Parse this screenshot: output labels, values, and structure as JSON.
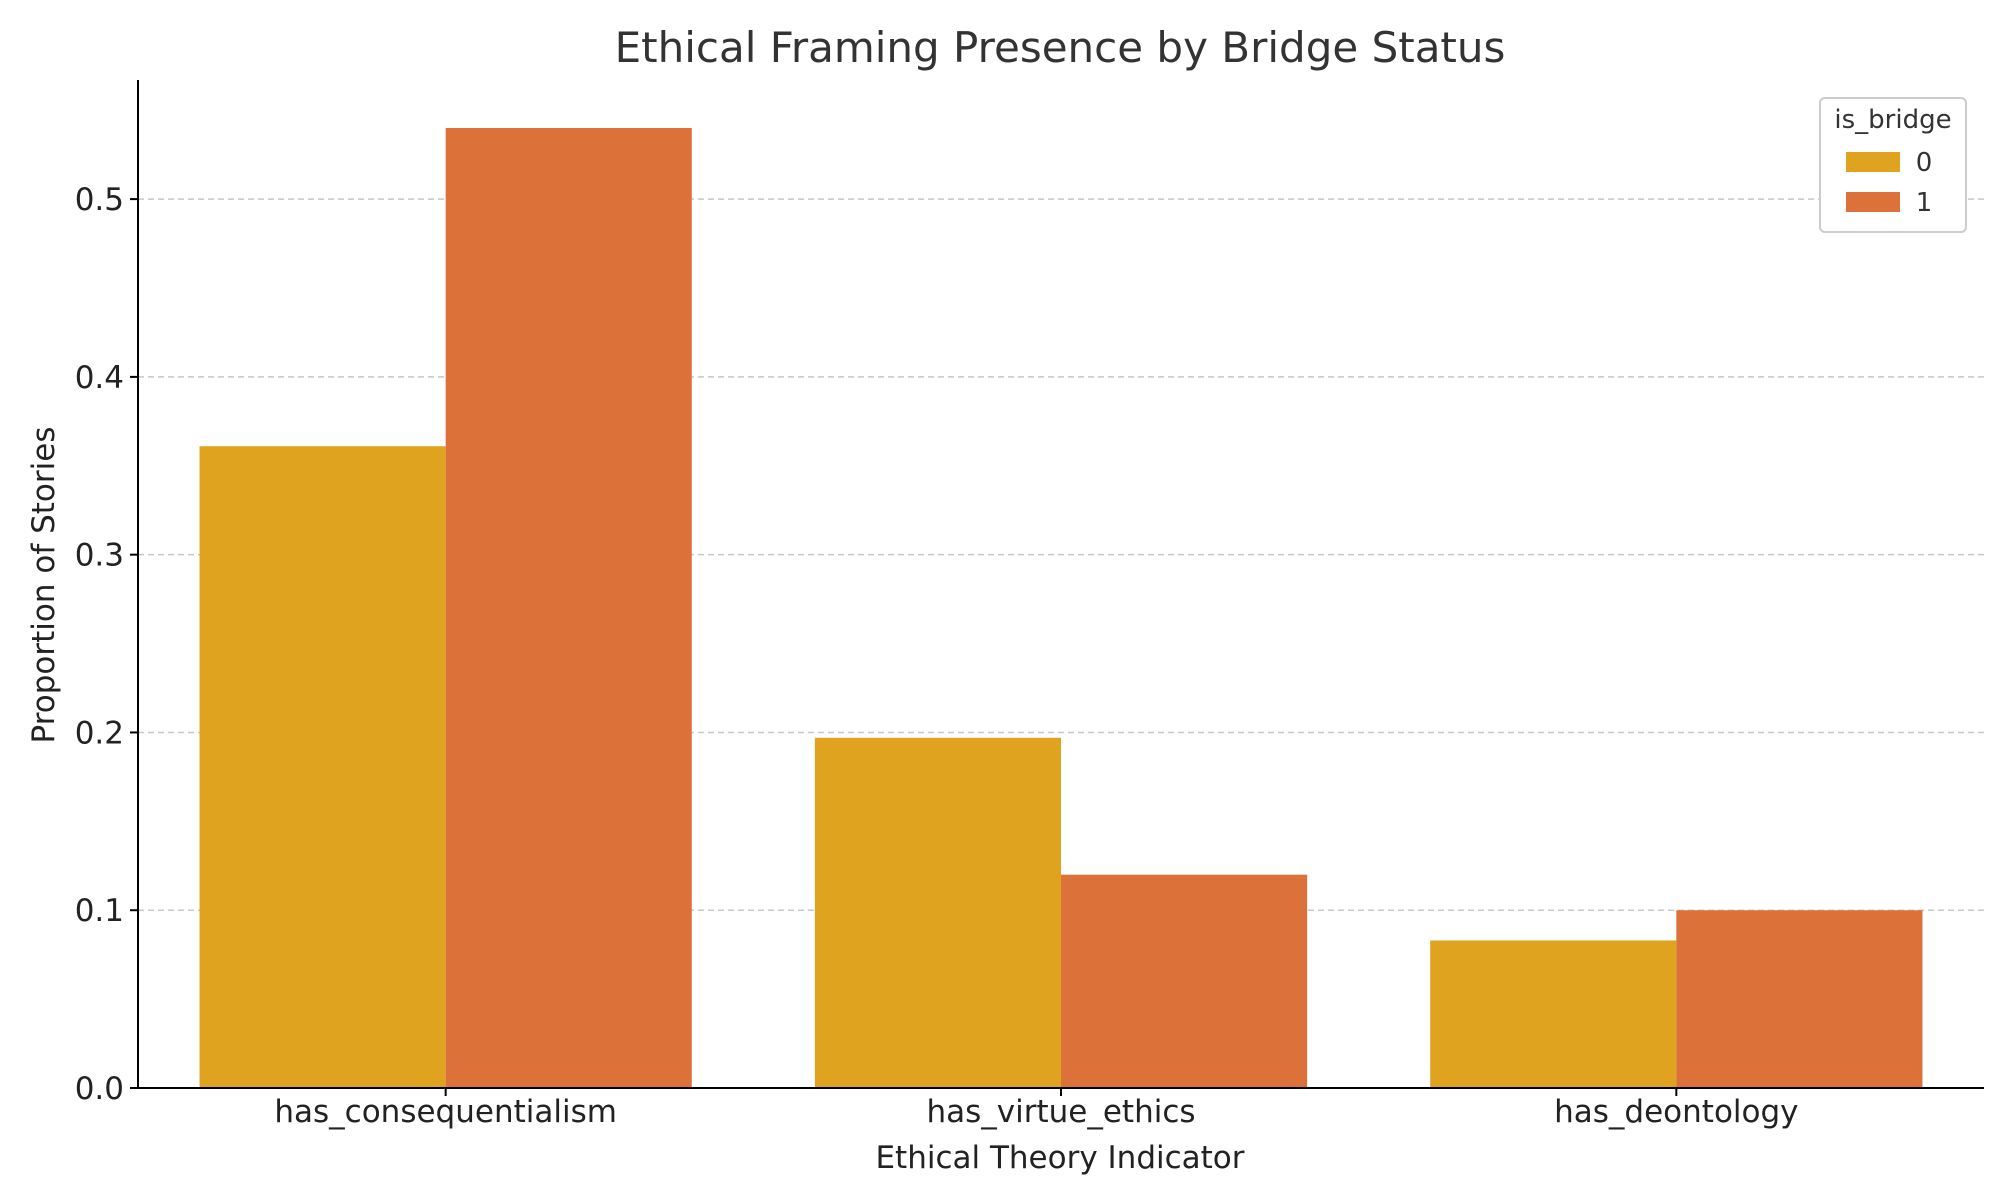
{
  "chart_data": {
    "type": "bar",
    "title": "Ethical Framing Presence by Bridge Status",
    "xlabel": "Ethical Theory Indicator",
    "ylabel": "Proportion of Stories",
    "categories": [
      "has_consequentialism",
      "has_virtue_ethics",
      "has_deontology"
    ],
    "series": [
      {
        "name": "0",
        "values": [
          0.361,
          0.197,
          0.083
        ],
        "color": "#E0A31F"
      },
      {
        "name": "1",
        "values": [
          0.54,
          0.12,
          0.1
        ],
        "color": "#DC713A"
      }
    ],
    "ylim": [
      0,
      0.567
    ],
    "yticks": [
      0.0,
      0.1,
      0.2,
      0.3,
      0.4,
      0.5
    ],
    "ytick_labels": [
      "0.0",
      "0.1",
      "0.2",
      "0.3",
      "0.4",
      "0.5"
    ],
    "grid": "horizontal dashed",
    "legend": {
      "title": "is_bridge",
      "placement": "top-right"
    }
  }
}
